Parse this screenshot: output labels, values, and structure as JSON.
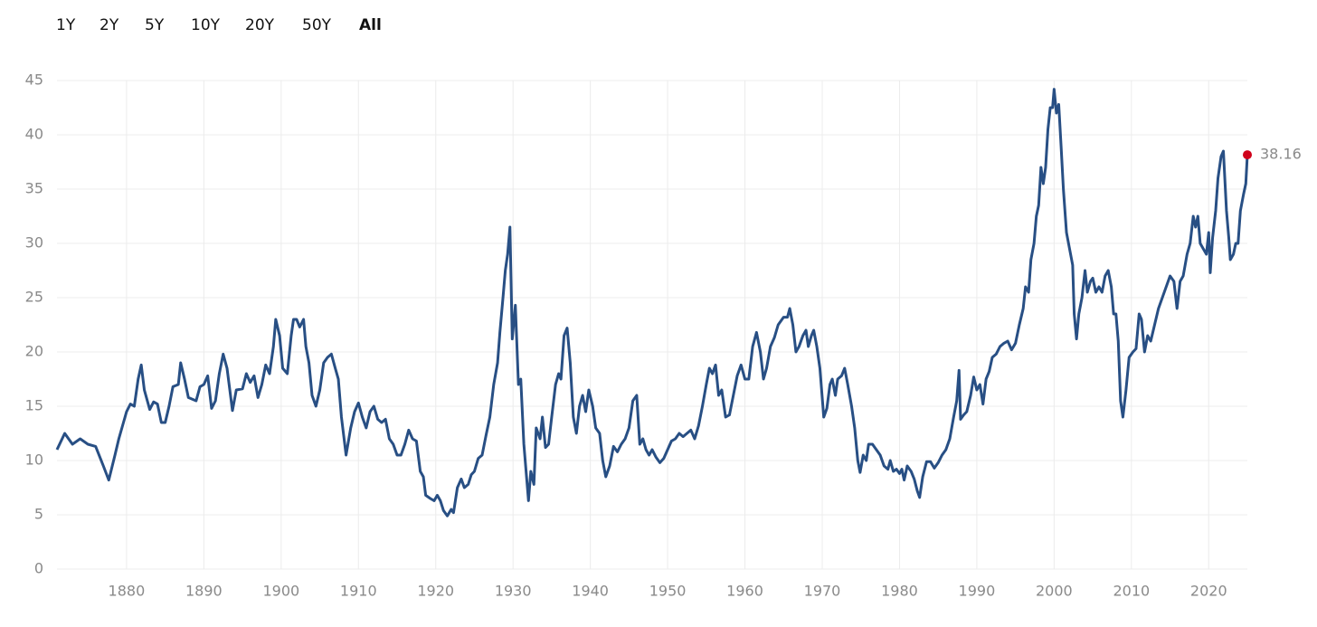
{
  "chart_data": {
    "type": "line",
    "range_buttons": [
      "1Y",
      "2Y",
      "5Y",
      "10Y",
      "20Y",
      "50Y",
      "All"
    ],
    "selected_range": "All",
    "xlim": [
      1871,
      2025
    ],
    "xticks": [
      1880,
      1890,
      1900,
      1910,
      1920,
      1930,
      1940,
      1950,
      1960,
      1970,
      1980,
      1990,
      2000,
      2010,
      2020
    ],
    "ylim": [
      0,
      45
    ],
    "yticks": [
      0,
      5,
      10,
      15,
      20,
      25,
      30,
      35,
      40,
      45
    ],
    "grid": true,
    "color": "#284f84",
    "last_point_color": "#d0021b",
    "x": [
      1871,
      1872,
      1873,
      1874,
      1875,
      1876,
      1877,
      1877.7,
      1878.5,
      1879,
      1880,
      1880.5,
      1881,
      1881.5,
      1881.9,
      1882.3,
      1883,
      1883.5,
      1884,
      1884.5,
      1885,
      1885.5,
      1886,
      1886.7,
      1887,
      1887.5,
      1888,
      1889,
      1889.5,
      1890,
      1890.5,
      1891,
      1891.5,
      1892,
      1892.5,
      1893,
      1893.7,
      1894.2,
      1895,
      1895.5,
      1896,
      1896.5,
      1897,
      1897.5,
      1898,
      1898.5,
      1899,
      1899.3,
      1899.8,
      1900.2,
      1900.8,
      1901.3,
      1901.6,
      1902,
      1902.4,
      1902.9,
      1903.2,
      1903.6,
      1904,
      1904.5,
      1905,
      1905.5,
      1906,
      1906.5,
      1907,
      1907.4,
      1907.8,
      1908.4,
      1909,
      1909.5,
      1910,
      1910.5,
      1911,
      1911.5,
      1912,
      1912.5,
      1913,
      1913.5,
      1914,
      1914.5,
      1915,
      1915.5,
      1916,
      1916.5,
      1917,
      1917.5,
      1918,
      1918.4,
      1918.7,
      1919.3,
      1919.8,
      1920.2,
      1920.6,
      1921,
      1921.5,
      1922,
      1922.3,
      1922.8,
      1923.3,
      1923.7,
      1924.2,
      1924.6,
      1925,
      1925.5,
      1926,
      1926.5,
      1927,
      1927.5,
      1928,
      1928.3,
      1928.7,
      1929,
      1929.3,
      1929.6,
      1929.9,
      1930.3,
      1930.7,
      1931,
      1931.4,
      1932,
      1932.3,
      1932.7,
      1933,
      1933.5,
      1933.8,
      1934.2,
      1934.6,
      1935,
      1935.5,
      1935.9,
      1936.2,
      1936.6,
      1937,
      1937.4,
      1937.8,
      1938.2,
      1938.6,
      1939,
      1939.4,
      1939.8,
      1940.3,
      1940.7,
      1941.2,
      1941.6,
      1942,
      1942.5,
      1943,
      1943.5,
      1944,
      1944.5,
      1945,
      1945.5,
      1946,
      1946.4,
      1946.8,
      1947.2,
      1947.6,
      1948,
      1948.5,
      1949,
      1949.5,
      1950,
      1950.5,
      1951,
      1951.5,
      1952,
      1952.5,
      1953,
      1953.5,
      1954,
      1954.5,
      1955,
      1955.4,
      1955.8,
      1956.2,
      1956.6,
      1957,
      1957.5,
      1958,
      1958.5,
      1959,
      1959.5,
      1960,
      1960.5,
      1961,
      1961.5,
      1962,
      1962.4,
      1962.8,
      1963.3,
      1963.8,
      1964.3,
      1965,
      1965.5,
      1965.8,
      1966.2,
      1966.6,
      1967,
      1967.5,
      1967.9,
      1968.2,
      1968.6,
      1968.9,
      1969.3,
      1969.7,
      1970.2,
      1970.6,
      1971,
      1971.3,
      1971.7,
      1972,
      1972.5,
      1972.9,
      1973.3,
      1973.8,
      1974.2,
      1974.6,
      1974.9,
      1975.3,
      1975.7,
      1976,
      1976.5,
      1977,
      1977.5,
      1978,
      1978.5,
      1978.8,
      1979.2,
      1979.6,
      1980,
      1980.3,
      1980.6,
      1981,
      1981.5,
      1981.9,
      1982.3,
      1982.6,
      1983,
      1983.5,
      1984,
      1984.5,
      1985,
      1985.5,
      1986,
      1986.5,
      1987,
      1987.4,
      1987.7,
      1987.9,
      1988.3,
      1988.7,
      1989.2,
      1989.6,
      1990,
      1990.4,
      1990.8,
      1991.2,
      1991.6,
      1992,
      1992.5,
      1993,
      1993.5,
      1994,
      1994.5,
      1995,
      1995.5,
      1996,
      1996.3,
      1996.7,
      1997,
      1997.4,
      1997.7,
      1998,
      1998.3,
      1998.6,
      1998.9,
      1999.2,
      1999.5,
      1999.8,
      2000,
      2000.3,
      2000.6,
      2000.9,
      2001.2,
      2001.6,
      2002,
      2002.4,
      2002.6,
      2002.9,
      2003.2,
      2003.6,
      2004,
      2004.3,
      2004.7,
      2005,
      2005.4,
      2005.8,
      2006.2,
      2006.6,
      2007,
      2007.4,
      2007.7,
      2008,
      2008.3,
      2008.6,
      2008.9,
      2009.3,
      2009.7,
      2010.2,
      2010.6,
      2011,
      2011.3,
      2011.7,
      2012.1,
      2012.5,
      2013,
      2013.5,
      2014,
      2014.5,
      2015,
      2015.5,
      2015.9,
      2016.3,
      2016.7,
      2017.2,
      2017.6,
      2018,
      2018.3,
      2018.6,
      2018.9,
      2019.3,
      2019.7,
      2020,
      2020.2,
      2020.5,
      2020.9,
      2021.2,
      2021.6,
      2021.9,
      2022.3,
      2022.6,
      2022.8,
      2023.2,
      2023.5,
      2023.8,
      2024.1,
      2024.5,
      2024.8,
      2025
    ],
    "values": [
      11,
      12.5,
      11.5,
      12,
      11.5,
      11.3,
      9.5,
      8.2,
      10.5,
      12,
      14.5,
      15.2,
      15,
      17.5,
      18.8,
      16.5,
      14.7,
      15.4,
      15.2,
      13.5,
      13.5,
      15,
      16.8,
      17,
      19,
      17.5,
      15.8,
      15.5,
      16.8,
      17,
      17.8,
      14.8,
      15.5,
      18,
      19.8,
      18.5,
      14.6,
      16.5,
      16.6,
      18,
      17.2,
      17.8,
      15.8,
      17,
      18.8,
      18,
      20.5,
      23,
      21.5,
      18.5,
      18,
      21.5,
      23,
      23,
      22.3,
      23,
      20.5,
      19,
      16,
      15,
      16.5,
      19,
      19.5,
      19.8,
      18.5,
      17.5,
      14,
      10.5,
      13,
      14.5,
      15.3,
      14,
      13,
      14.5,
      15,
      13.8,
      13.5,
      13.8,
      12,
      11.5,
      10.5,
      10.5,
      11.5,
      12.8,
      12,
      11.8,
      9,
      8.5,
      6.8,
      6.5,
      6.3,
      6.8,
      6.3,
      5.4,
      4.9,
      5.5,
      5.2,
      7.5,
      8.3,
      7.5,
      7.8,
      8.7,
      9,
      10.2,
      10.5,
      12.3,
      14,
      17,
      19,
      21.8,
      25,
      27.5,
      29,
      31.5,
      21.2,
      24.3,
      17,
      17.5,
      11.5,
      6.3,
      9,
      7.8,
      13,
      12,
      14,
      11.2,
      11.5,
      14,
      17,
      18,
      17.5,
      21.5,
      22.2,
      19,
      14,
      12.5,
      15,
      16,
      14.5,
      16.5,
      15,
      13,
      12.5,
      10,
      8.5,
      9.5,
      11.3,
      10.8,
      11.5,
      12,
      13,
      15.5,
      16,
      11.5,
      12,
      11,
      10.5,
      11,
      10.3,
      9.8,
      10.2,
      11,
      11.8,
      12,
      12.5,
      12.2,
      12.5,
      12.8,
      12,
      13.2,
      15,
      17,
      18.5,
      18,
      18.8,
      16,
      16.5,
      14,
      14.2,
      16,
      17.8,
      18.8,
      17.5,
      17.5,
      20.5,
      21.8,
      20,
      17.5,
      18.5,
      20.5,
      21.3,
      22.5,
      23.2,
      23.2,
      24,
      22.5,
      20,
      20.5,
      21.5,
      22,
      20.5,
      21.5,
      22,
      20.5,
      18.5,
      14,
      14.8,
      17,
      17.5,
      16,
      17.5,
      17.8,
      18.5,
      17,
      15,
      13,
      10,
      8.9,
      10.5,
      10,
      11.5,
      11.5,
      11,
      10.5,
      9.5,
      9.2,
      10,
      9,
      9.2,
      8.8,
      9.2,
      8.2,
      9.5,
      9,
      8.3,
      7.2,
      6.6,
      8.5,
      9.9,
      9.9,
      9.3,
      9.8,
      10.5,
      11,
      12,
      14,
      15.5,
      18.3,
      13.8,
      14.2,
      14.5,
      16,
      17.7,
      16.5,
      17,
      15.2,
      17.5,
      18.2,
      19.5,
      19.8,
      20.5,
      20.8,
      21,
      20.2,
      20.8,
      22.5,
      24,
      26,
      25.5,
      28.5,
      30,
      32.5,
      33.5,
      37,
      35.5,
      37,
      40.5,
      42.5,
      42.5,
      44.2,
      42,
      42.8,
      39,
      35,
      31,
      29.5,
      28,
      23.5,
      21.2,
      23.5,
      25,
      27.5,
      25.5,
      26.5,
      26.8,
      25.5,
      26,
      25.5,
      27,
      27.5,
      26,
      23.5,
      23.5,
      21,
      15.5,
      14,
      16.5,
      19.5,
      20,
      20.3,
      23.5,
      23,
      20,
      21.5,
      21,
      22.5,
      24,
      25,
      26,
      27,
      26.5,
      24,
      26.5,
      27,
      29,
      30,
      32.5,
      31.5,
      32.5,
      30,
      29.5,
      29,
      31,
      27.3,
      30.5,
      33,
      36,
      38,
      38.5,
      33,
      30.5,
      28.5,
      29,
      30,
      30,
      33,
      34.5,
      35.5,
      38.16
    ]
  }
}
